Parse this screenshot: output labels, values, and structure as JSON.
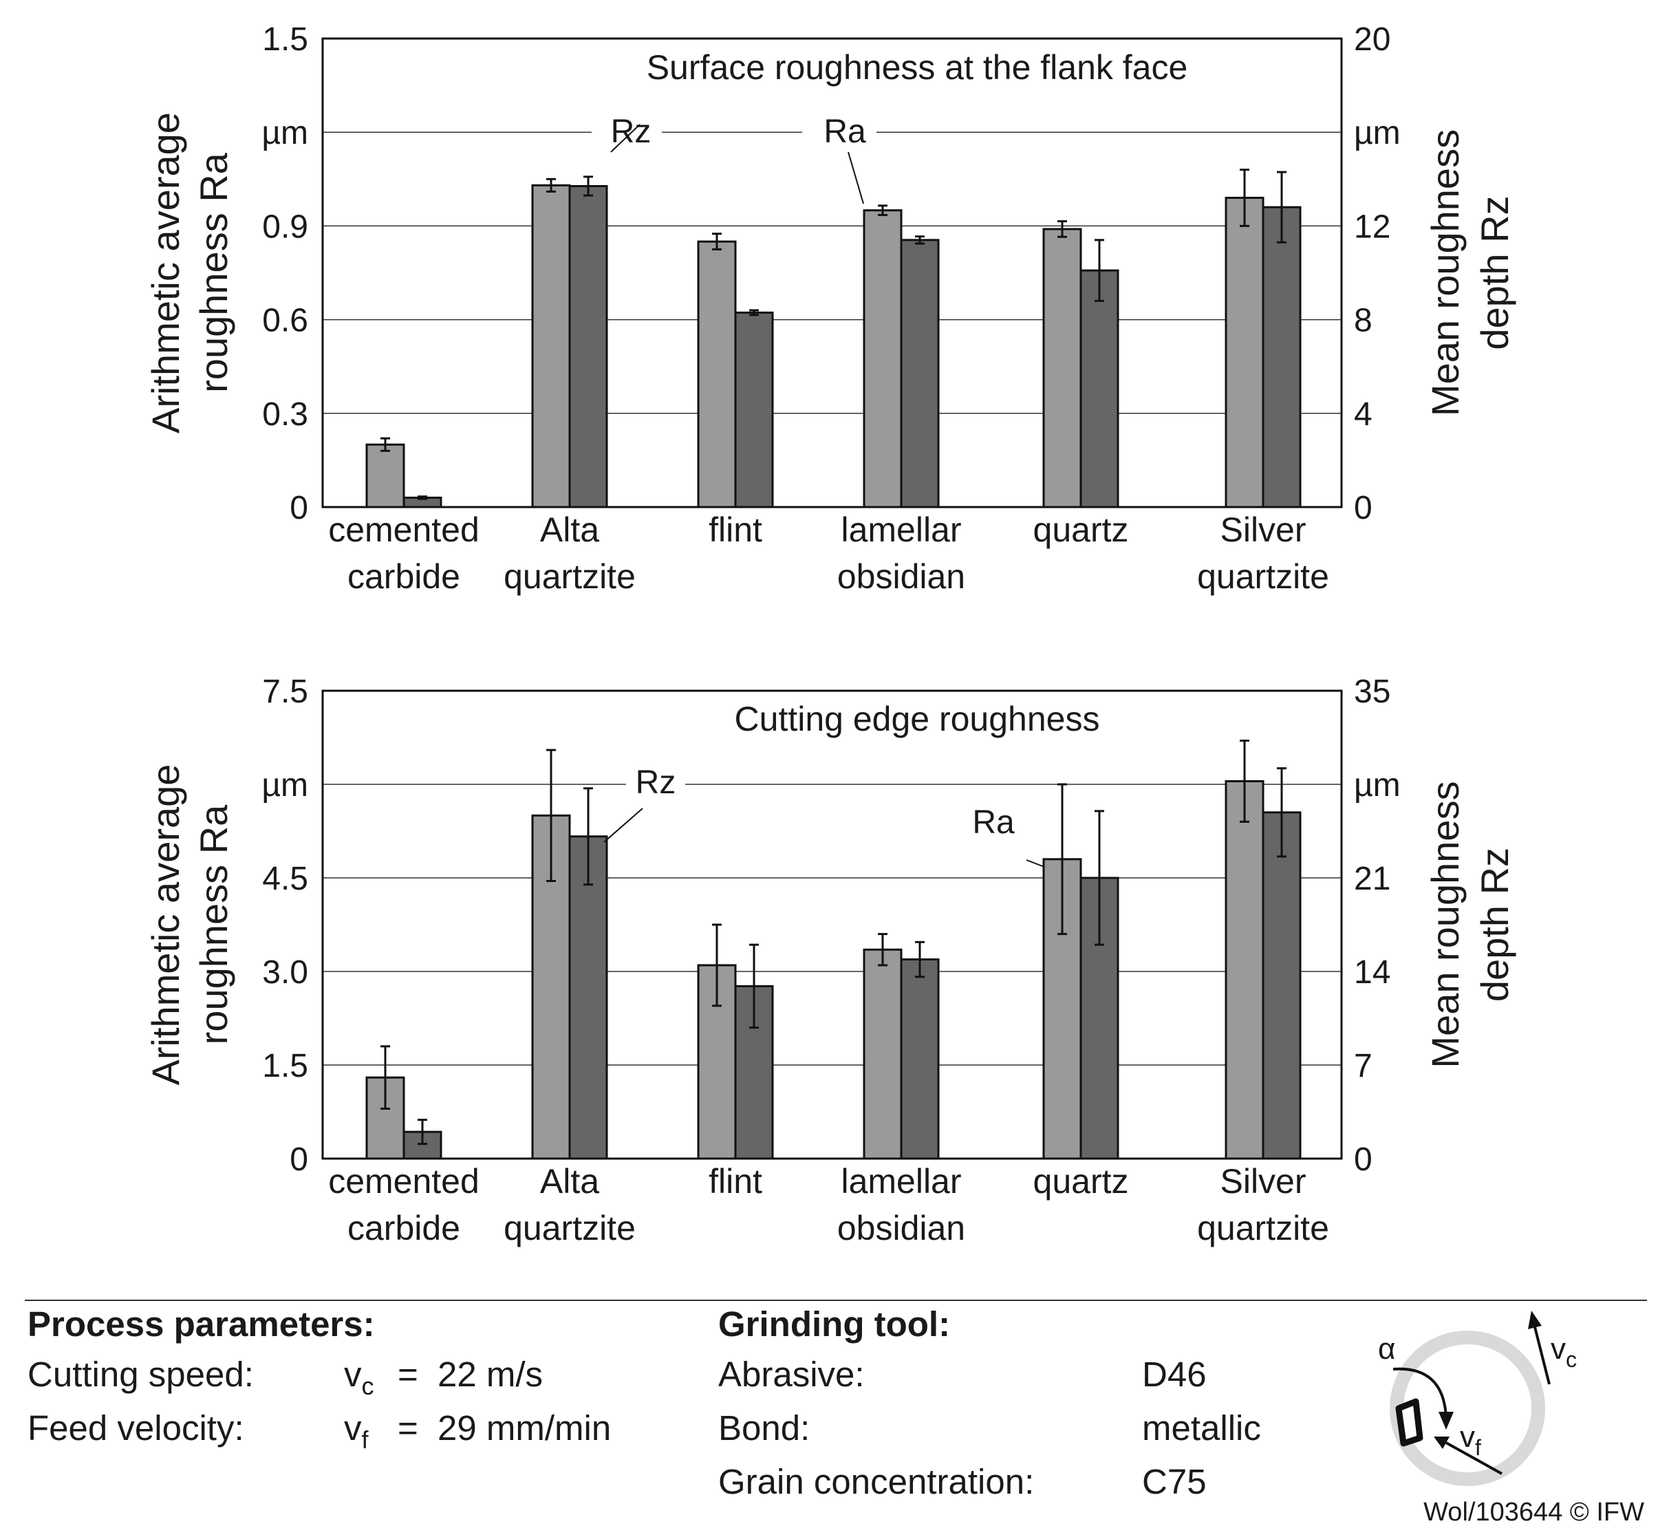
{
  "chart_data": [
    {
      "type": "bar",
      "title": "Surface roughness at the flank face",
      "categories": [
        [
          "cemented",
          "carbide"
        ],
        [
          "Alta",
          "quartzite"
        ],
        [
          "flint",
          ""
        ],
        [
          "lamellar",
          "obsidian"
        ],
        [
          "quartz",
          ""
        ],
        [
          "Silver",
          "quartzite"
        ]
      ],
      "ylabel_left": [
        "Arithmetic average",
        "roughness Ra"
      ],
      "ylabel_right": [
        "Mean roughness",
        "depth Rz"
      ],
      "unit_left": "µm",
      "unit_right": "µm",
      "ylim_left": [
        0,
        1.5
      ],
      "ylim_right": [
        0,
        20
      ],
      "yticks_left": [
        "0",
        "0.3",
        "0.6",
        "0.9",
        "",
        "1.5"
      ],
      "yticks_right": [
        "0",
        "4",
        "8",
        "12",
        "",
        "20"
      ],
      "grid": true,
      "series": [
        {
          "name": "Ra",
          "axis": "left",
          "color": "#9a9a9a",
          "values": [
            0.2,
            1.03,
            0.85,
            0.95,
            0.89,
            0.99
          ],
          "errors": [
            0.02,
            0.02,
            0.025,
            0.015,
            0.025,
            0.09
          ]
        },
        {
          "name": "Rz",
          "axis": "right",
          "color": "#666666",
          "values": [
            0.4,
            13.7,
            8.3,
            11.4,
            10.1,
            12.8
          ],
          "errors": [
            0.05,
            0.4,
            0.1,
            0.15,
            1.3,
            1.5
          ]
        }
      ]
    },
    {
      "type": "bar",
      "title": "Cutting edge roughness",
      "categories": [
        [
          "cemented",
          "carbide"
        ],
        [
          "Alta",
          "quartzite"
        ],
        [
          "flint",
          ""
        ],
        [
          "lamellar",
          "obsidian"
        ],
        [
          "quartz",
          ""
        ],
        [
          "Silver",
          "quartzite"
        ]
      ],
      "ylabel_left": [
        "Arithmetic average",
        "roughness Ra"
      ],
      "ylabel_right": [
        "Mean roughness",
        "depth Rz"
      ],
      "unit_left": "µm",
      "unit_right": "µm",
      "ylim_left": [
        0,
        7.5
      ],
      "ylim_right": [
        0,
        35
      ],
      "yticks_left": [
        "0",
        "1.5",
        "3.0",
        "4.5",
        "",
        "7.5"
      ],
      "yticks_right": [
        "0",
        "7",
        "14",
        "21",
        "",
        "35"
      ],
      "grid": true,
      "series": [
        {
          "name": "Ra",
          "axis": "left",
          "color": "#9a9a9a",
          "values": [
            1.3,
            5.5,
            3.1,
            3.35,
            4.8,
            6.05
          ],
          "errors": [
            0.5,
            1.05,
            0.65,
            0.25,
            1.2,
            0.65
          ]
        },
        {
          "name": "Rz",
          "axis": "right",
          "color": "#666666",
          "values": [
            2.0,
            24.1,
            12.9,
            14.9,
            21.0,
            25.9
          ],
          "errors": [
            0.9,
            3.6,
            3.1,
            1.3,
            5.0,
            3.3
          ]
        }
      ]
    }
  ],
  "process": {
    "heading": "Process parameters:",
    "cutting_label": "Cutting speed:",
    "cutting_sym": "v",
    "cutting_sub": "c",
    "cutting_eq": "=",
    "cutting_val": "22 m/s",
    "feed_label": "Feed velocity:",
    "feed_sym": "v",
    "feed_sub": "f",
    "feed_eq": "=",
    "feed_val": "29 mm/min"
  },
  "tool": {
    "heading": "Grinding tool:",
    "abrasive_label": "Abrasive:",
    "abrasive_val": "D46",
    "bond_label": "Bond:",
    "bond_val": "metallic",
    "grain_label": "Grain concentration:",
    "grain_val": "C75"
  },
  "schematic": {
    "alpha": "α",
    "vc_sym": "v",
    "vc_sub": "c",
    "vf_sym": "v",
    "vf_sub": "f"
  },
  "copyright": "Wol/103644 © IFW"
}
